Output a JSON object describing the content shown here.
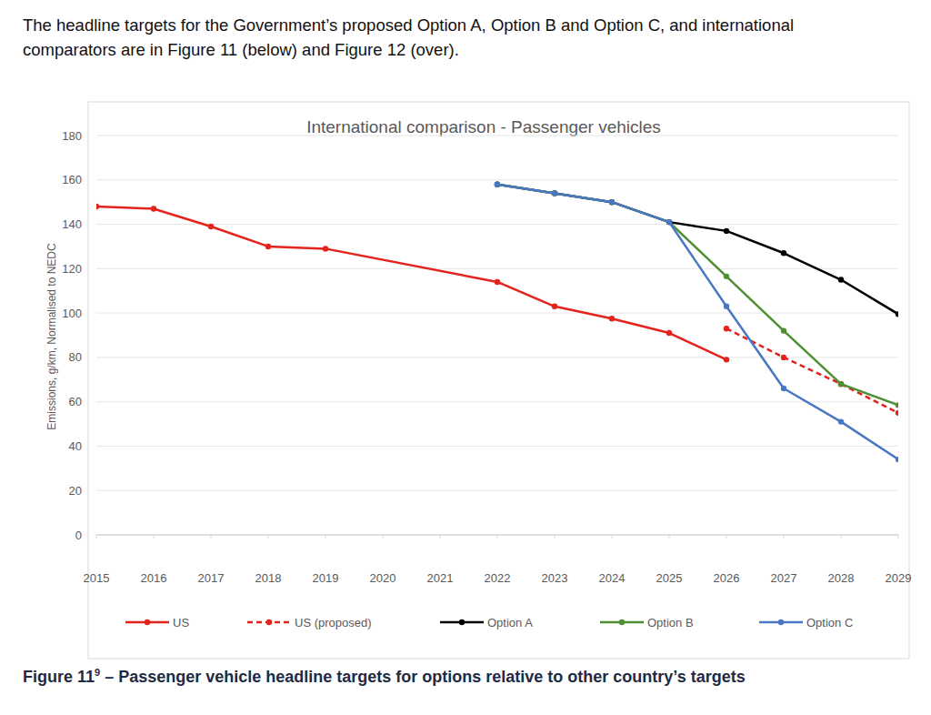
{
  "chart_data": {
    "type": "line",
    "intro": [
      "The headline targets for the Government’s proposed Option A, Option B and Option C, and international",
      "comparators are in Figure 11 (below) and Figure 12 (over)."
    ],
    "title": "International comparison - Passenger vehicles",
    "y_label": "Emissions, g/km, Normalised to NEDC",
    "caption": [
      "Figure 11",
      "9",
      " – Passenger vehicle headline targets for options relative to other country’s targets"
    ],
    "xlim": [
      2015,
      2029
    ],
    "xticks": [
      2015,
      2016,
      2017,
      2018,
      2019,
      2020,
      2021,
      2022,
      2023,
      2024,
      2025,
      2026,
      2027,
      2028,
      2029
    ],
    "ylim": [
      0,
      180
    ],
    "yticks": [
      0,
      20,
      40,
      60,
      80,
      100,
      120,
      140,
      160,
      180
    ],
    "grid": true,
    "legend": "bottom",
    "series": [
      {
        "name": "US",
        "color": "#e3231c",
        "marker": "circle",
        "line_style": "solid",
        "x": [
          2015,
          2016,
          2017,
          2018,
          2019,
          2022,
          2023,
          2024,
          2025,
          2026
        ],
        "values": [
          148,
          147,
          139,
          130,
          129,
          114,
          103,
          97.5,
          91,
          79
        ]
      },
      {
        "name": "US (proposed)",
        "color": "#e3231c",
        "marker": "circle",
        "line_style": "dashed",
        "x": [
          2026,
          2027,
          2028,
          2029
        ],
        "values": [
          93,
          80,
          68,
          55
        ]
      },
      {
        "name": "Option A",
        "color": "#000000",
        "marker": "circle",
        "line_style": "solid",
        "x": [
          2022,
          2023,
          2024,
          2025,
          2026,
          2027,
          2028,
          2029
        ],
        "values": [
          158,
          154,
          150,
          141,
          137,
          127,
          115,
          99.5
        ]
      },
      {
        "name": "Option B",
        "color": "#4e8f34",
        "marker": "circle",
        "line_style": "solid",
        "x": [
          2022,
          2023,
          2024,
          2025,
          2026,
          2027,
          2028,
          2029
        ],
        "values": [
          158,
          154,
          150,
          141,
          116.5,
          92,
          68,
          58.5
        ]
      },
      {
        "name": "Option C",
        "color": "#4a77c4",
        "marker": "circle",
        "line_style": "solid",
        "x": [
          2022,
          2023,
          2024,
          2025,
          2026,
          2027,
          2028,
          2029
        ],
        "values": [
          158,
          154,
          150,
          141,
          103,
          66,
          51,
          34
        ]
      }
    ]
  }
}
